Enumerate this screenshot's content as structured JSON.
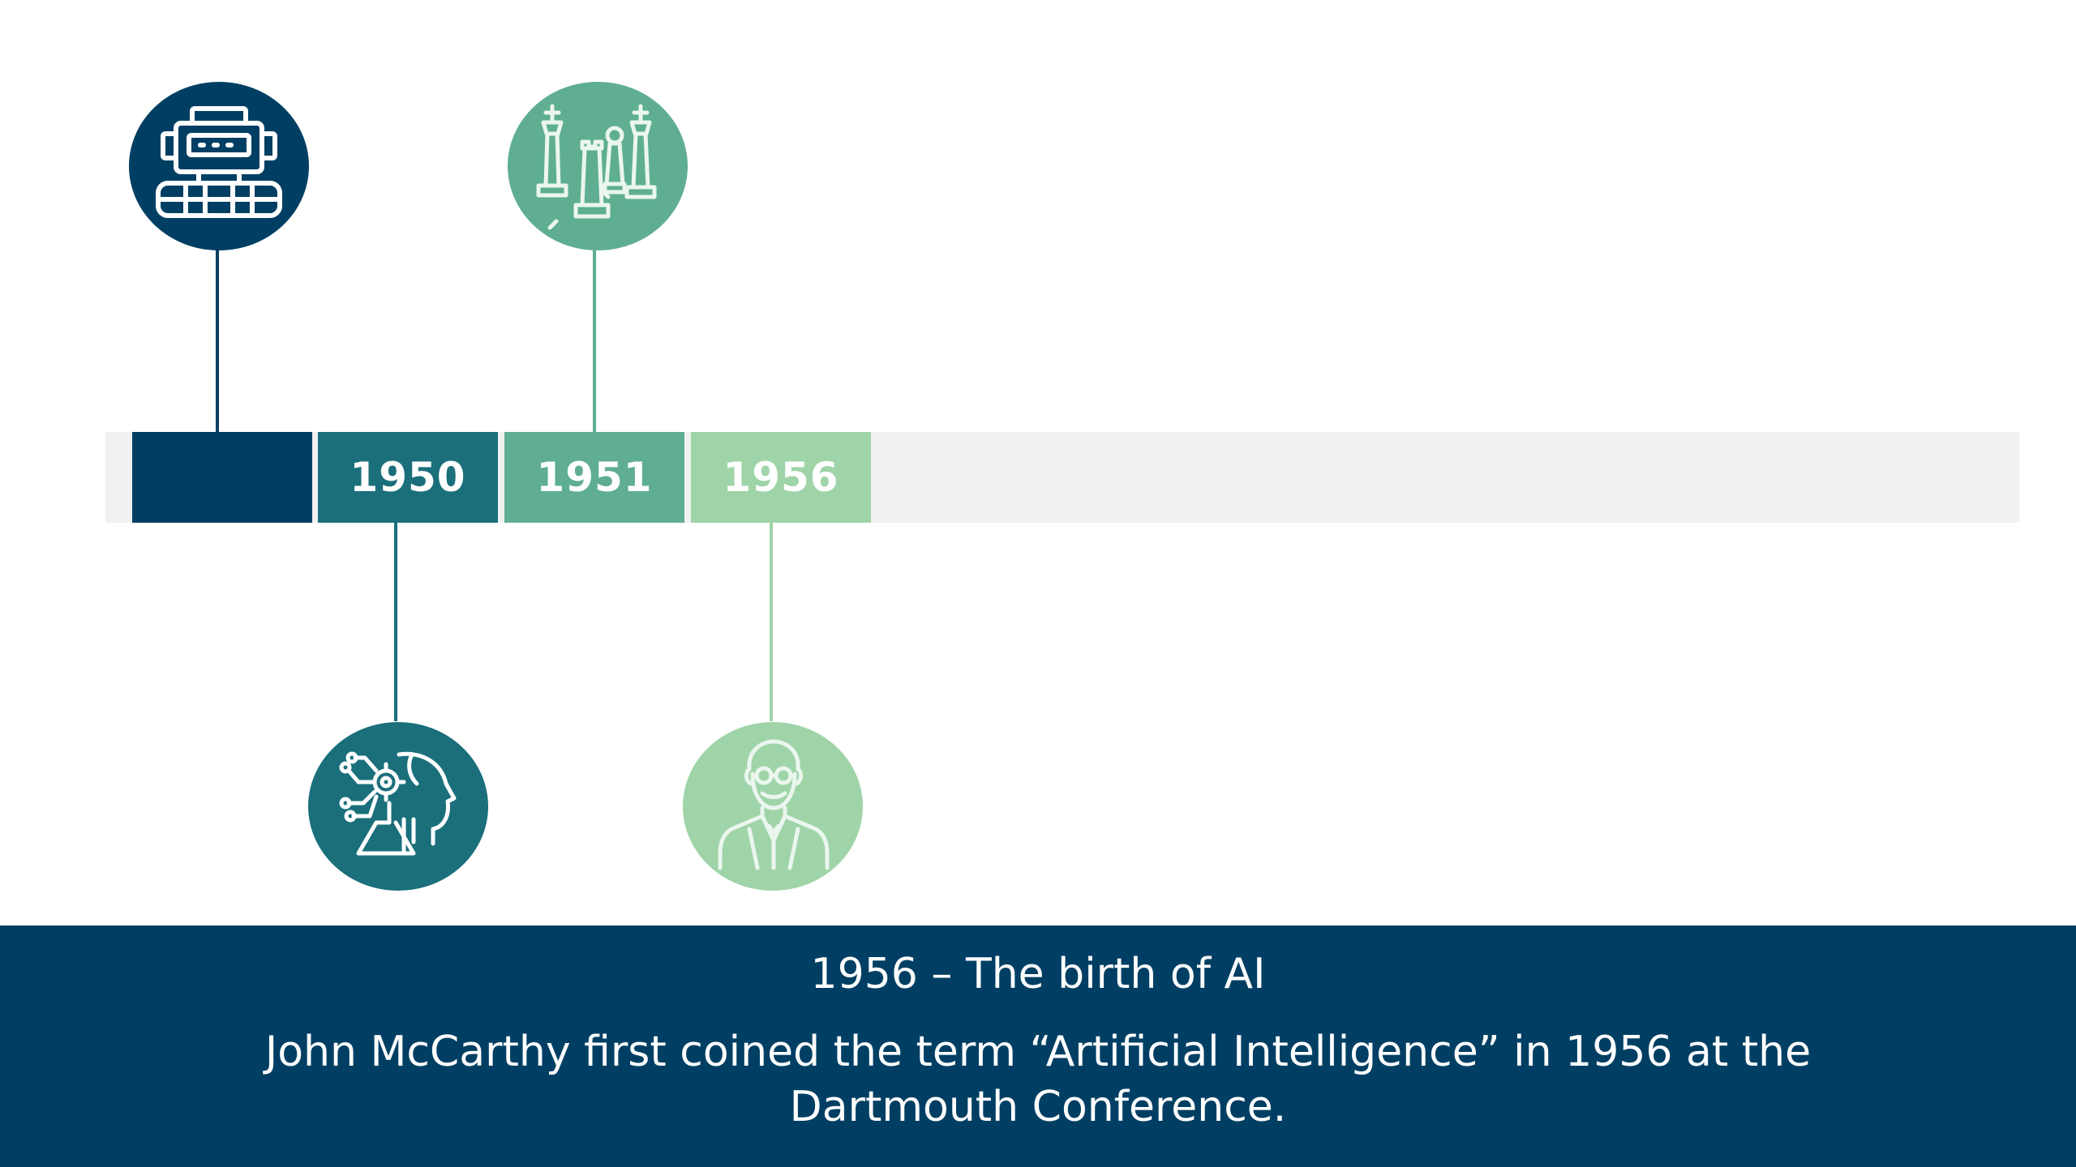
{
  "timeline": {
    "segments": [
      {
        "label": "",
        "color": "#003f63"
      },
      {
        "label": "1950",
        "color": "#1a6f7b"
      },
      {
        "label": "1951",
        "color": "#5fae92"
      },
      {
        "label": "1956",
        "color": "#9fd4a8"
      }
    ],
    "track_color": "#f1f1f1"
  },
  "icons": [
    {
      "name": "robot-icon",
      "color": "#003f63"
    },
    {
      "name": "ai-brain-head-icon",
      "color": "#1a6f7b"
    },
    {
      "name": "chess-pieces-icon",
      "color": "#5fae92"
    },
    {
      "name": "scientist-icon",
      "color": "#9fd4a8"
    }
  ],
  "caption": {
    "title": "1956 – The birth of AI",
    "body": "John McCarthy first coined the term “Artificial Intelligence” in 1956 at the Dartmouth Conference.",
    "background": "#003f63"
  }
}
